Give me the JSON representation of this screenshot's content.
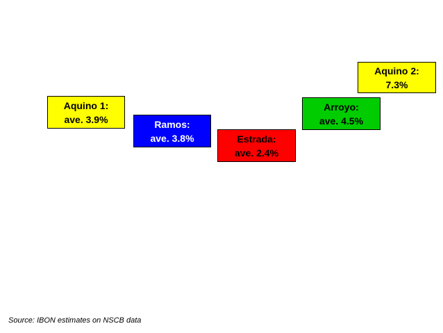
{
  "periods": [
    {
      "id": "aquino1",
      "line1": "Aquino 1:",
      "line2": "ave. 3.9%",
      "average_pct": 3.9,
      "fill": "#ffff00",
      "text_color": "#000000"
    },
    {
      "id": "ramos",
      "line1": "Ramos:",
      "line2": "ave. 3.8%",
      "average_pct": 3.8,
      "fill": "#0000ff",
      "text_color": "#ffffff"
    },
    {
      "id": "estrada",
      "line1": "Estrada:",
      "line2": "ave. 2.4%",
      "average_pct": 2.4,
      "fill": "#ff0000",
      "text_color": "#000000"
    },
    {
      "id": "arroyo",
      "line1": "Arroyo:",
      "line2": "ave. 4.5%",
      "average_pct": 4.5,
      "fill": "#00cc00",
      "text_color": "#000000"
    },
    {
      "id": "aquino2",
      "line1": "Aquino 2:",
      "line2": "7.3%",
      "average_pct": 7.3,
      "fill": "#ffff00",
      "text_color": "#000000"
    }
  ],
  "source": "Source: IBON estimates on NSCB data"
}
